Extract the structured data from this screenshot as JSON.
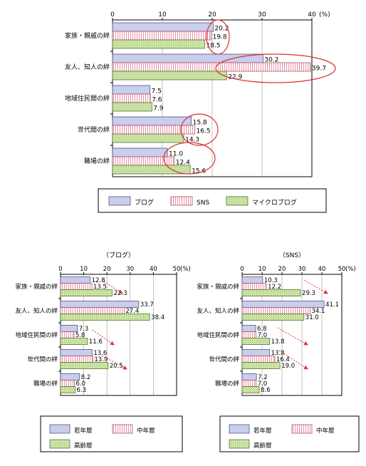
{
  "colors": {
    "blue": "#c9cdee",
    "pink": "#ffc8d2",
    "green": "#cfe4a5",
    "highlight": "#e03030",
    "arrow": "#e03030"
  },
  "chart_data": [
    {
      "type": "bar",
      "orientation": "horizontal",
      "categories": [
        "家族・親戚の絆",
        "友人、知人の絆",
        "地域住民間の絆",
        "世代間の絆",
        "職場の絆"
      ],
      "series": [
        {
          "name": "ブログ",
          "values": [
            20.2,
            30.2,
            7.5,
            15.8,
            11.0
          ]
        },
        {
          "name": "SNS",
          "values": [
            19.8,
            39.7,
            7.6,
            16.5,
            12.4
          ]
        },
        {
          "name": "マイクロブログ",
          "values": [
            18.5,
            22.9,
            7.9,
            14.3,
            15.6
          ]
        }
      ],
      "ticks": [
        "0",
        "10",
        "20",
        "30",
        "40"
      ],
      "unit": "(%)",
      "xlim": [
        0,
        40
      ],
      "grid": true,
      "legend_position": "bottom"
    },
    {
      "type": "bar",
      "orientation": "horizontal",
      "title": "（ブログ）",
      "categories": [
        "家族・親戚の絆",
        "友人、知人の絆",
        "地域住民間の絆",
        "世代間の絆",
        "職場の絆"
      ],
      "series": [
        {
          "name": "若年層",
          "values": [
            12.8,
            33.7,
            7.3,
            13.6,
            8.2
          ]
        },
        {
          "name": "中年層",
          "values": [
            13.5,
            27.4,
            5.8,
            13.9,
            6.0
          ]
        },
        {
          "name": "高齢層",
          "values": [
            22.3,
            38.4,
            11.6,
            20.5,
            6.3
          ]
        }
      ],
      "ticks": [
        "0",
        "10",
        "20",
        "30",
        "40",
        "50"
      ],
      "unit": "(%)",
      "xlim": [
        0,
        50
      ],
      "grid": true,
      "legend_position": "bottom"
    },
    {
      "type": "bar",
      "orientation": "horizontal",
      "title": "（SNS）",
      "categories": [
        "家族・親戚の絆",
        "友人、知人の絆",
        "地域住民間の絆",
        "世代間の絆",
        "職場の絆"
      ],
      "series": [
        {
          "name": "若年層",
          "values": [
            10.3,
            41.1,
            6.8,
            13.8,
            7.2
          ]
        },
        {
          "name": "中年層",
          "values": [
            12.2,
            34.1,
            7.0,
            16.4,
            7.0
          ]
        },
        {
          "name": "高齢層",
          "values": [
            29.3,
            31.0,
            13.8,
            19.0,
            8.6
          ]
        }
      ],
      "ticks": [
        "0",
        "10",
        "20",
        "30",
        "40",
        "50"
      ],
      "unit": "(%)",
      "xlim": [
        0,
        50
      ],
      "grid": true,
      "legend_position": "bottom"
    }
  ]
}
